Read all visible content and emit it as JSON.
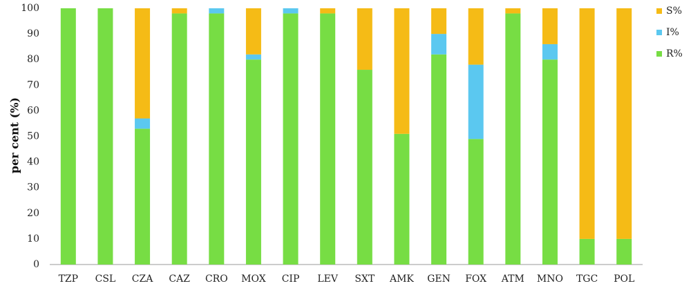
{
  "chart_data": {
    "type": "bar",
    "stacked": true,
    "categories": [
      "TZP",
      "CSL",
      "CZA",
      "CAZ",
      "CRO",
      "MOX",
      "CIP",
      "LEV",
      "SXT",
      "AMK",
      "GEN",
      "FOX",
      "ATM",
      "MNO",
      "TGC",
      "POL"
    ],
    "series": [
      {
        "name": "R%",
        "color": "#77dd44",
        "values": [
          100,
          100,
          53,
          98,
          98,
          80,
          98,
          98,
          76,
          51,
          82,
          49,
          98,
          80,
          10,
          10
        ]
      },
      {
        "name": "I%",
        "color": "#5bc8f0",
        "values": [
          0,
          0,
          4,
          0,
          2,
          2,
          2,
          0,
          0,
          0,
          8,
          29,
          0,
          6,
          0,
          0
        ]
      },
      {
        "name": "S%",
        "color": "#f5bb16",
        "values": [
          0,
          0,
          43,
          2,
          0,
          18,
          0,
          2,
          24,
          49,
          10,
          22,
          2,
          14,
          90,
          90
        ]
      }
    ],
    "ylabel": "per cent (%)",
    "xlabel": "",
    "ylim": [
      0,
      100
    ],
    "yticks": [
      0,
      10,
      20,
      30,
      40,
      50,
      60,
      70,
      80,
      90,
      100
    ],
    "grid": false,
    "legend_position": "top-right",
    "legend_order": [
      "S%",
      "I%",
      "R%"
    ]
  }
}
